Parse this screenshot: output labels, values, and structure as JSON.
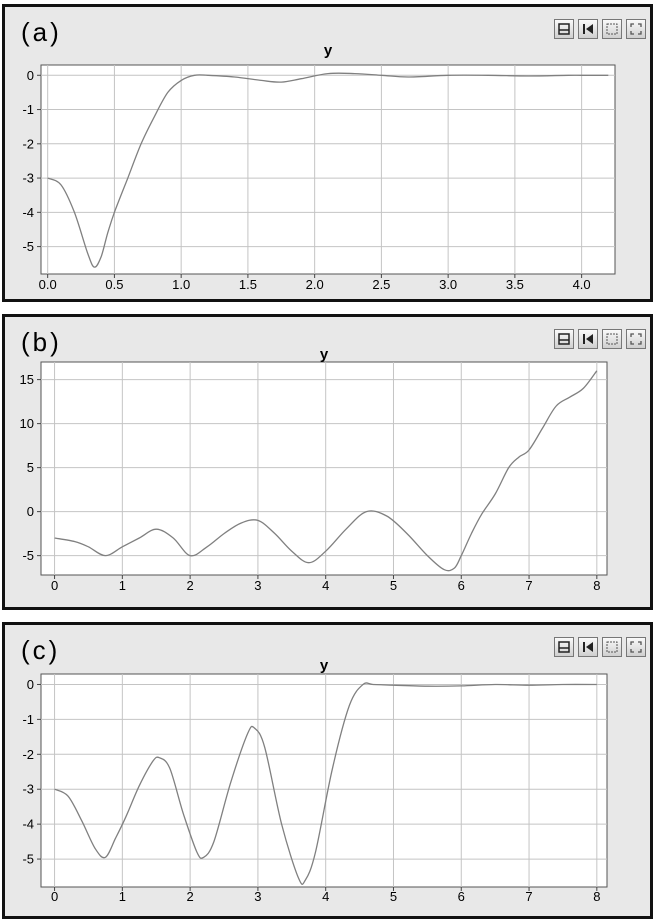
{
  "panels": [
    {
      "label": "(a)"
    },
    {
      "label": "(b)"
    },
    {
      "label": "(c)"
    }
  ],
  "toolbar_icons": [
    "print-icon",
    "reset-icon",
    "select-icon",
    "fullscreen-icon"
  ],
  "colors": {
    "line": "#808080",
    "grid": "#c4c4c4",
    "panel_bg": "#e8e8e8",
    "plot_bg": "#ffffff"
  },
  "chart_data": [
    {
      "type": "line",
      "title": "y",
      "xlabel": "",
      "ylabel": "",
      "xlim": [
        -0.05,
        4.25
      ],
      "ylim": [
        -5.8,
        0.3
      ],
      "xticks": [
        0.0,
        0.5,
        1.0,
        1.5,
        2.0,
        2.5,
        3.0,
        3.5,
        4.0
      ],
      "xtick_labels": [
        "0.0",
        "0.5",
        "1.0",
        "1.5",
        "2.0",
        "2.5",
        "3.0",
        "3.5",
        "4.0"
      ],
      "yticks": [
        0,
        -1,
        -2,
        -3,
        -4,
        -5
      ],
      "ytick_labels": [
        "0",
        "-1",
        "-2",
        "-3",
        "-4",
        "-5"
      ],
      "grid": true,
      "series": [
        {
          "x": [
            0.0,
            0.1,
            0.2,
            0.3,
            0.35,
            0.4,
            0.45,
            0.5,
            0.6,
            0.7,
            0.8,
            0.9,
            1.0,
            1.1,
            1.2,
            1.4,
            1.6,
            1.75,
            1.9,
            2.1,
            2.3,
            2.5,
            2.7,
            3.0,
            3.3,
            3.6,
            3.9,
            4.0,
            4.2
          ],
          "y": [
            -3.0,
            -3.2,
            -4.0,
            -5.2,
            -5.6,
            -5.3,
            -4.6,
            -4.0,
            -3.0,
            -2.0,
            -1.2,
            -0.5,
            -0.15,
            0.0,
            0.0,
            -0.05,
            -0.15,
            -0.2,
            -0.1,
            0.05,
            0.05,
            0.0,
            -0.05,
            0.0,
            0.0,
            -0.02,
            0.0,
            0.0,
            0.0
          ]
        }
      ]
    },
    {
      "type": "line",
      "title": "y",
      "xlabel": "",
      "ylabel": "",
      "xlim": [
        -0.2,
        8.15
      ],
      "ylim": [
        -7.2,
        17
      ],
      "xticks": [
        0,
        1,
        2,
        3,
        4,
        5,
        6,
        7,
        8
      ],
      "xtick_labels": [
        "0",
        "1",
        "2",
        "3",
        "4",
        "5",
        "6",
        "7",
        "8"
      ],
      "yticks": [
        15,
        10,
        5,
        0,
        -5
      ],
      "ytick_labels": [
        "15",
        "10",
        "5",
        "0",
        "-5"
      ],
      "grid": true,
      "series": [
        {
          "x": [
            0.0,
            0.3,
            0.5,
            0.75,
            1.0,
            1.25,
            1.5,
            1.75,
            2.0,
            2.25,
            2.5,
            2.75,
            3.0,
            3.25,
            3.5,
            3.75,
            4.0,
            4.3,
            4.6,
            4.9,
            5.2,
            5.5,
            5.75,
            5.9,
            6.0,
            6.15,
            6.3,
            6.5,
            6.7,
            6.85,
            7.0,
            7.2,
            7.4,
            7.6,
            7.8,
            8.0
          ],
          "y": [
            -3.0,
            -3.4,
            -4.0,
            -5.0,
            -4.0,
            -3.0,
            -2.0,
            -3.0,
            -5.0,
            -4.0,
            -2.5,
            -1.3,
            -1.0,
            -2.5,
            -4.5,
            -5.8,
            -4.5,
            -2.0,
            0.0,
            -0.5,
            -2.5,
            -5.0,
            -6.6,
            -6.4,
            -5.0,
            -2.5,
            -0.3,
            2.0,
            5.0,
            6.2,
            7.0,
            9.5,
            12.0,
            13.0,
            14.0,
            16.0
          ]
        }
      ]
    },
    {
      "type": "line",
      "title": "y",
      "xlabel": "",
      "ylabel": "",
      "xlim": [
        -0.2,
        8.15
      ],
      "ylim": [
        -5.8,
        0.3
      ],
      "xticks": [
        0,
        1,
        2,
        3,
        4,
        5,
        6,
        7,
        8
      ],
      "xtick_labels": [
        "0",
        "1",
        "2",
        "3",
        "4",
        "5",
        "6",
        "7",
        "8"
      ],
      "yticks": [
        0,
        -1,
        -2,
        -3,
        -4,
        -5
      ],
      "ytick_labels": [
        "0",
        "-1",
        "-2",
        "-3",
        "-4",
        "-5"
      ],
      "grid": true,
      "series": [
        {
          "x": [
            0.0,
            0.2,
            0.4,
            0.6,
            0.75,
            0.9,
            1.05,
            1.25,
            1.45,
            1.55,
            1.7,
            1.9,
            2.1,
            2.2,
            2.35,
            2.6,
            2.85,
            2.95,
            3.1,
            3.35,
            3.6,
            3.7,
            3.85,
            4.1,
            4.35,
            4.55,
            4.7,
            5.0,
            5.5,
            6.0,
            6.5,
            7.0,
            7.5,
            8.0
          ],
          "y": [
            -3.0,
            -3.2,
            -3.9,
            -4.7,
            -4.95,
            -4.4,
            -3.8,
            -2.9,
            -2.2,
            -2.1,
            -2.4,
            -3.7,
            -4.8,
            -4.95,
            -4.5,
            -2.8,
            -1.4,
            -1.25,
            -1.8,
            -4.0,
            -5.55,
            -5.6,
            -4.8,
            -2.4,
            -0.6,
            0.0,
            0.0,
            -0.02,
            -0.05,
            -0.04,
            0.0,
            -0.02,
            0.0,
            0.0
          ]
        }
      ]
    }
  ]
}
